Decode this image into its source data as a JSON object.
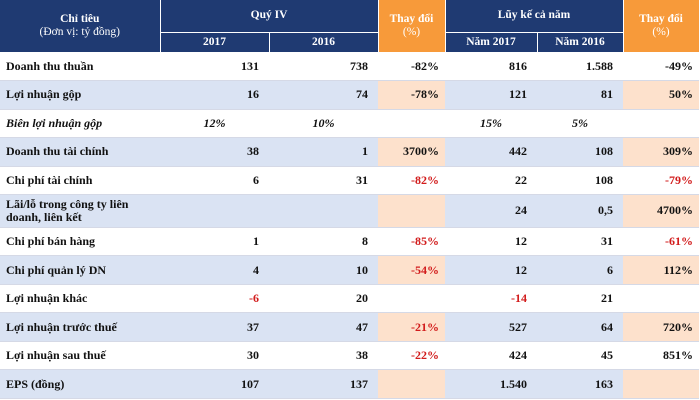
{
  "header": {
    "indicator": "Chỉ tiêu",
    "unit": "(Đơn vị: tỷ đồng)",
    "q4": "Quý IV",
    "change": "Thay đổi",
    "pct": "(%)",
    "ytd": "Lũy kế cả năm",
    "y2017": "2017",
    "y2016": "2016",
    "ytd2017": "Năm 2017",
    "ytd2016": "Năm 2016"
  },
  "rows": [
    {
      "label": "Doanh thu thuần",
      "q4_2017": "131",
      "q4_2016": "738",
      "q4_change": "-82%",
      "ytd_2017": "816",
      "ytd_2016": "1.588",
      "ytd_change": "-49%"
    },
    {
      "label": "Lợi nhuận gộp",
      "q4_2017": "16",
      "q4_2016": "74",
      "q4_change": "-78%",
      "ytd_2017": "121",
      "ytd_2016": "81",
      "ytd_change": "50%"
    },
    {
      "label": "Biên lợi nhuận gộp",
      "q4_2017": "12%",
      "q4_2016": "10%",
      "q4_change": "",
      "ytd_2017": "15%",
      "ytd_2016": "5%",
      "ytd_change": ""
    },
    {
      "label": "Doanh thu tài chính",
      "q4_2017": "38",
      "q4_2016": "1",
      "q4_change": "3700%",
      "ytd_2017": "442",
      "ytd_2016": "108",
      "ytd_change": "309%"
    },
    {
      "label": "Chi phí tài chính",
      "q4_2017": "6",
      "q4_2016": "31",
      "q4_change": "-82%",
      "ytd_2017": "22",
      "ytd_2016": "108",
      "ytd_change": "-79%"
    },
    {
      "label": "Lãi/lỗ trong công ty liên doanh, liên kết",
      "q4_2017": "",
      "q4_2016": "",
      "q4_change": "",
      "ytd_2017": "24",
      "ytd_2016": "0,5",
      "ytd_change": "4700%"
    },
    {
      "label": "Chi phí bán hàng",
      "q4_2017": "1",
      "q4_2016": "8",
      "q4_change": "-85%",
      "ytd_2017": "12",
      "ytd_2016": "31",
      "ytd_change": "-61%"
    },
    {
      "label": "Chi phí quản lý DN",
      "q4_2017": "4",
      "q4_2016": "10",
      "q4_change": "-54%",
      "ytd_2017": "12",
      "ytd_2016": "6",
      "ytd_change": "112%"
    },
    {
      "label": "Lợi nhuận khác",
      "q4_2017": "-6",
      "q4_2016": "20",
      "q4_change": "",
      "ytd_2017": "-14",
      "ytd_2016": "21",
      "ytd_change": ""
    },
    {
      "label": "Lợi nhuận trước thuế",
      "q4_2017": "37",
      "q4_2016": "47",
      "q4_change": "-21%",
      "ytd_2017": "527",
      "ytd_2016": "64",
      "ytd_change": "720%"
    },
    {
      "label": "Lợi nhuận sau thuế",
      "q4_2017": "30",
      "q4_2016": "38",
      "q4_change": "-22%",
      "ytd_2017": "424",
      "ytd_2016": "45",
      "ytd_change": "851%"
    },
    {
      "label": "EPS (đồng)",
      "q4_2017": "107",
      "q4_2016": "137",
      "q4_change": "",
      "ytd_2017": "1.540",
      "ytd_2016": "163",
      "ytd_change": ""
    }
  ],
  "colors": {
    "header_blue": "#1f3a72",
    "header_orange": "#f79a3a",
    "row_blue": "#dae3f3",
    "change_peach": "#fde1cc",
    "negative_red": "#d21c1c"
  }
}
